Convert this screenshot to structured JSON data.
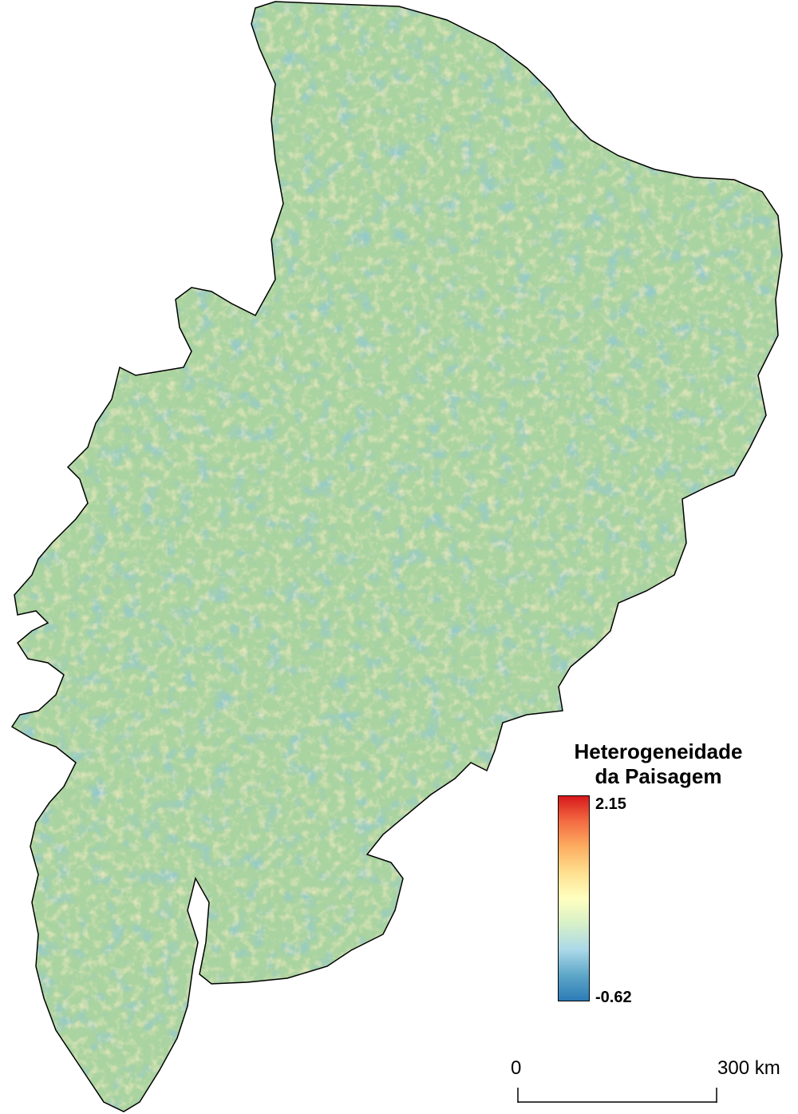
{
  "legend": {
    "title_line1": "Heterogeneidade",
    "title_line2": "da Paisagem",
    "max_label": "2.15",
    "min_label": "-0.62",
    "colormap": [
      "#2c7bb6",
      "#5fa7c9",
      "#abd9e9",
      "#d7f0c8",
      "#ffffbf",
      "#fee090",
      "#fdae61",
      "#f46d43",
      "#d7191c"
    ]
  },
  "scale_bar": {
    "start_label": "0",
    "end_label": "300 km"
  },
  "map_colors": {
    "base": "#a9d3a0",
    "low": "#3f8fc4",
    "high": "#e0503a",
    "mid": "#f3e6a0",
    "border": "#000000"
  }
}
